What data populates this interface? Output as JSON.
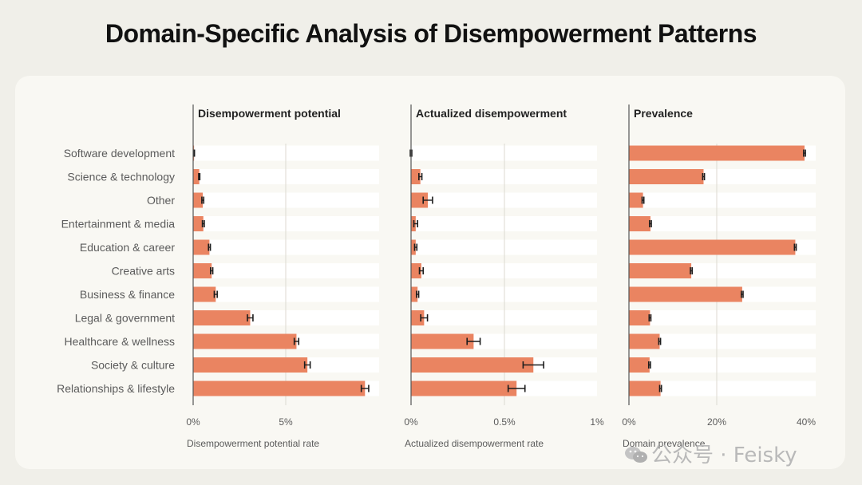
{
  "title": "Domain-Specific Analysis of Disempowerment Patterns",
  "watermark": "公众号 · Feisky",
  "colors": {
    "bar": "#ea8461",
    "track": "#ffffff",
    "error": "#1c1c1c",
    "axis": "#555555",
    "grid": "#dcdad2",
    "text": "#5b5b5b"
  },
  "chart_data": [
    {
      "type": "bar",
      "orientation": "horizontal",
      "title": "Disempowerment potential",
      "xlabel": "Disempowerment potential rate",
      "xlim": [
        0,
        10
      ],
      "ticks": [
        0,
        5
      ],
      "tick_labels": [
        "0%",
        "5%"
      ],
      "gridlines": [
        5
      ],
      "categories": [
        "Software development",
        "Science & technology",
        "Other",
        "Entertainment & media",
        "Education & career",
        "Creative arts",
        "Business & finance",
        "Legal & government",
        "Healthcare & wellness",
        "Society & culture",
        "Relationships & lifestyle"
      ],
      "values": [
        0.05,
        0.33,
        0.52,
        0.55,
        0.88,
        1.0,
        1.22,
        3.08,
        5.58,
        6.17,
        9.28
      ],
      "errors": [
        0.02,
        0.03,
        0.05,
        0.05,
        0.05,
        0.06,
        0.08,
        0.15,
        0.12,
        0.15,
        0.2
      ]
    },
    {
      "type": "bar",
      "orientation": "horizontal",
      "title": "Actualized disempowerment",
      "xlabel": "Actualized disempowerment rate",
      "xlim": [
        0,
        1
      ],
      "ticks": [
        0,
        0.5,
        1
      ],
      "tick_labels": [
        "0%",
        "0.5%",
        "1%"
      ],
      "gridlines": [
        0.5
      ],
      "categories": [
        "Software development",
        "Science & technology",
        "Other",
        "Entertainment & media",
        "Education & career",
        "Creative arts",
        "Business & finance",
        "Legal & government",
        "Healthcare & wellness",
        "Society & culture",
        "Relationships & lifestyle"
      ],
      "values": [
        0.0,
        0.05,
        0.09,
        0.025,
        0.025,
        0.055,
        0.035,
        0.07,
        0.335,
        0.655,
        0.565
      ],
      "errors": [
        0.004,
        0.008,
        0.025,
        0.01,
        0.006,
        0.01,
        0.006,
        0.018,
        0.035,
        0.055,
        0.045
      ]
    },
    {
      "type": "bar",
      "orientation": "horizontal",
      "title": "Prevalence",
      "xlabel": "Domain prevalence",
      "xlim": [
        0,
        42
      ],
      "ticks": [
        0,
        20,
        40
      ],
      "tick_labels": [
        "0%",
        "20%",
        "40%"
      ],
      "gridlines": [
        20
      ],
      "categories": [
        "Software development",
        "Science & technology",
        "Other",
        "Entertainment & media",
        "Education & career",
        "Creative arts",
        "Business & finance",
        "Legal & government",
        "Healthcare & wellness",
        "Society & culture",
        "Relationships & lifestyle"
      ],
      "values": [
        40.0,
        17.0,
        3.2,
        4.9,
        37.9,
        14.2,
        25.8,
        4.8,
        7.0,
        4.7,
        7.2
      ],
      "errors": [
        0.2,
        0.2,
        0.2,
        0.2,
        0.2,
        0.2,
        0.2,
        0.2,
        0.2,
        0.2,
        0.2
      ]
    }
  ]
}
